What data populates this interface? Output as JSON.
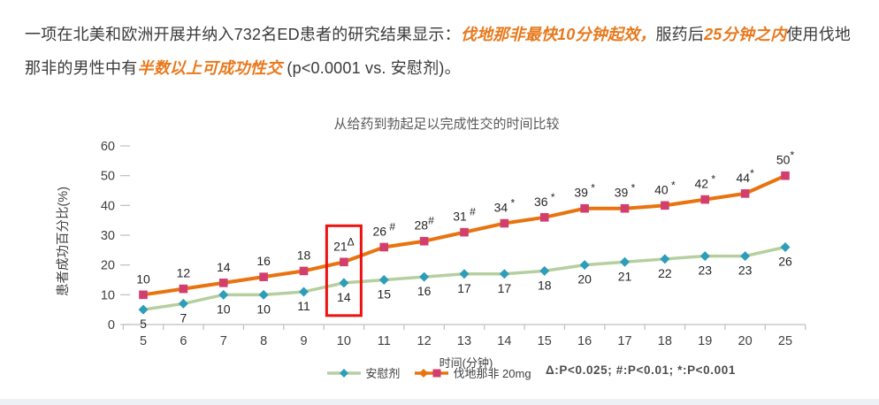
{
  "intro": {
    "highlight_color": "#e8791d",
    "text_color": "#3a3a3a",
    "segments": [
      {
        "text": "一项在北美和欧洲开展并纳入732名ED患者的研究结果显示：",
        "style": "normal"
      },
      {
        "text": "伐地那非最快10分钟起效，",
        "style": "highlight"
      },
      {
        "text": "服药后",
        "style": "normal"
      },
      {
        "text": "25分钟之内",
        "style": "highlight"
      },
      {
        "text": "使用伐地那非的男性中有",
        "style": "normal"
      },
      {
        "text": "半数以上可成功性交",
        "style": "highlight"
      },
      {
        "text": " (p<0.0001 vs. 安慰剂)。",
        "style": "normal"
      }
    ]
  },
  "chart_data": {
    "type": "line",
    "title": "从给药到勃起足以完成性交的时间比较",
    "xlabel": "时间(分钟)",
    "ylabel": "患者成功百分比(%)",
    "ylim": [
      0,
      60
    ],
    "yticks": [
      0,
      10,
      20,
      30,
      40,
      50,
      60
    ],
    "grid": false,
    "legend_position": "bottom",
    "categories": [
      "5",
      "6",
      "7",
      "8",
      "9",
      "10",
      "11",
      "12",
      "13",
      "14",
      "15",
      "16",
      "17",
      "18",
      "19",
      "20",
      "25"
    ],
    "series": [
      {
        "key": "placebo",
        "name": "安慰剂",
        "line_color": "#b5cf9e",
        "marker": "diamond",
        "marker_color": "#2e9db9",
        "label_position": "below",
        "values": [
          5,
          7,
          10,
          10,
          11,
          14,
          15,
          16,
          17,
          17,
          18,
          20,
          21,
          22,
          23,
          23,
          26
        ],
        "labels": [
          {
            "t": "5"
          },
          {
            "t": "7"
          },
          {
            "t": "10"
          },
          {
            "t": "10"
          },
          {
            "t": "11"
          },
          {
            "t": "14"
          },
          {
            "t": "15"
          },
          {
            "t": "16"
          },
          {
            "t": "17"
          },
          {
            "t": "17"
          },
          {
            "t": "18"
          },
          {
            "t": "20"
          },
          {
            "t": "21"
          },
          {
            "t": "22"
          },
          {
            "t": "23"
          },
          {
            "t": "23"
          },
          {
            "t": "26"
          }
        ],
        "legend_markers": [
          {
            "shape": "diamond",
            "color": "#2e9db9"
          }
        ]
      },
      {
        "key": "vardenafil",
        "name": "伐地那非 20mg",
        "line_color": "#e8730f",
        "marker": "square",
        "marker_color": "#d23e6e",
        "label_position": "above",
        "values": [
          10,
          12,
          14,
          16,
          18,
          21,
          26,
          28,
          31,
          34,
          36,
          39,
          39,
          40,
          42,
          44,
          50
        ],
        "labels": [
          {
            "t": "10"
          },
          {
            "t": "12"
          },
          {
            "t": "14"
          },
          {
            "t": "16"
          },
          {
            "t": "18"
          },
          {
            "t": "21",
            "sup": "Δ"
          },
          {
            "t": "26",
            "sup": " #"
          },
          {
            "t": "28",
            "sup": "#"
          },
          {
            "t": "31",
            "sup": " #"
          },
          {
            "t": "34",
            "sup": " *"
          },
          {
            "t": "36",
            "sup": " *"
          },
          {
            "t": "39",
            "sup": " *"
          },
          {
            "t": "39",
            "sup": " *"
          },
          {
            "t": "40",
            "sup": " *"
          },
          {
            "t": "42",
            "sup": " *"
          },
          {
            "t": "44",
            "sup": "*"
          },
          {
            "t": "50",
            "sup": "*"
          }
        ],
        "legend_markers": [
          {
            "shape": "diamond",
            "color": "#e8730f"
          },
          {
            "shape": "square",
            "color": "#d23e6e"
          }
        ]
      }
    ],
    "highlight_box": {
      "category": "10",
      "color": "#ee1111"
    },
    "footnote": "Δ:P<0.025;  #:P<0.01;  *:P<0.001",
    "axis_color": "#bfbfbf",
    "tick_label_color": "#404040",
    "data_label_color": "#262626"
  }
}
